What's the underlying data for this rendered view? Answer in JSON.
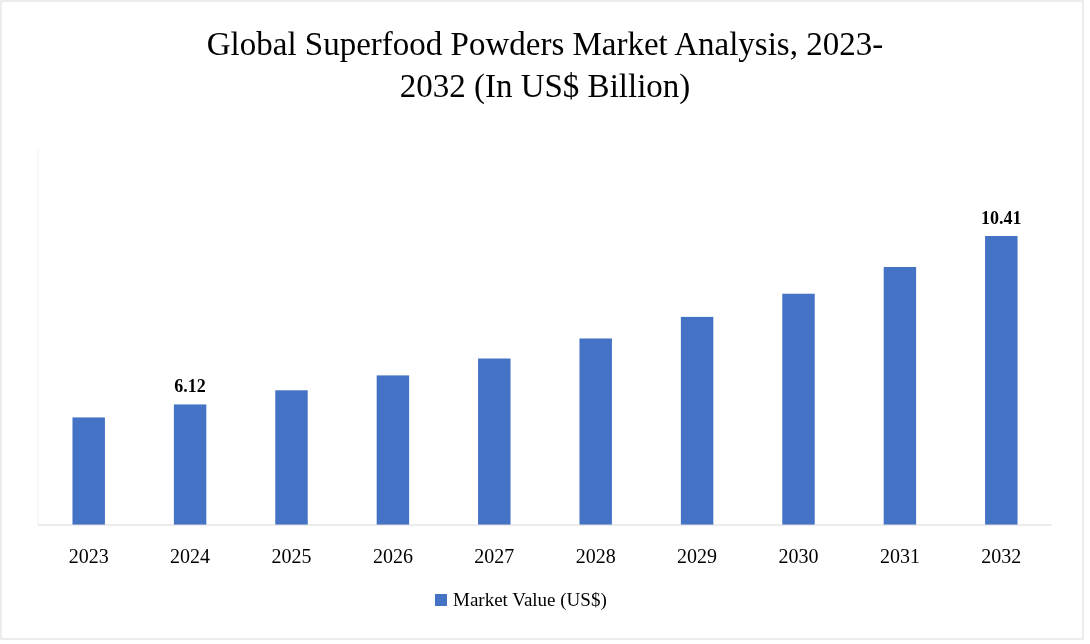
{
  "chart_data": {
    "type": "bar",
    "title": "Global Superfood Powders Market Analysis, 2023-2032 (In US$ Billion)",
    "categories": [
      "2023",
      "2024",
      "2025",
      "2026",
      "2027",
      "2028",
      "2029",
      "2030",
      "2031",
      "2032"
    ],
    "series": [
      {
        "name": "Market Value (US$)",
        "color": "#4472c4",
        "values": [
          5.79,
          6.12,
          6.48,
          6.86,
          7.29,
          7.8,
          8.35,
          8.94,
          9.62,
          10.41
        ],
        "value_labels": [
          null,
          "6.12",
          null,
          null,
          null,
          null,
          null,
          null,
          null,
          "10.41"
        ]
      }
    ],
    "ylim": [
      3.05,
      12.6
    ],
    "legend": "bottom"
  }
}
